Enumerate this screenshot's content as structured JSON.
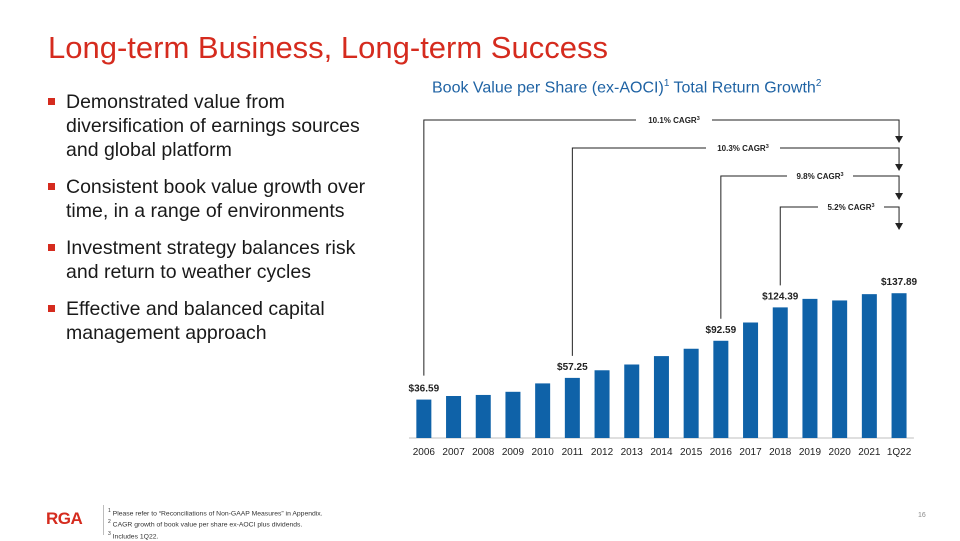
{
  "slide": {
    "title": "Long-term Business, Long-term Success",
    "page_number": "16",
    "logo_text": "RGA"
  },
  "bullets": [
    "Demonstrated value from diversification of earnings sources and global platform",
    "Consistent book value growth over time, in a range of environments",
    "Investment strategy balances risk and return to weather cycles",
    "Effective and balanced capital management approach"
  ],
  "chart_heading": {
    "text_a": "Book Value per Share (ex-AOCI)",
    "sup_a": "1",
    "text_b": " Total Return Growth",
    "sup_b": "2"
  },
  "footnotes": [
    {
      "sup": "1",
      "text": " Please refer to “Reconciliations of Non-GAAP Measures” in Appendix."
    },
    {
      "sup": "2",
      "text": " CAGR growth of book value per share ex-AOCI plus dividends."
    },
    {
      "sup": "3",
      "text": " Includes 1Q22."
    }
  ],
  "colors": {
    "accent": "#d52b1e",
    "bar": "#0f62a8",
    "heading": "#1f63a4"
  },
  "chart_data": {
    "type": "bar",
    "categories": [
      "2006",
      "2007",
      "2008",
      "2009",
      "2010",
      "2011",
      "2012",
      "2013",
      "2014",
      "2015",
      "2016",
      "2017",
      "2018",
      "2019",
      "2020",
      "2021",
      "1Q22"
    ],
    "values": [
      36.59,
      40.0,
      41.0,
      44.0,
      52.0,
      57.25,
      64.5,
      70.0,
      78.0,
      85.0,
      92.59,
      110.0,
      124.39,
      132.5,
      131.0,
      137.0,
      137.89
    ],
    "data_labels": [
      {
        "index": 0,
        "text": "$36.59"
      },
      {
        "index": 5,
        "text": "$57.25"
      },
      {
        "index": 10,
        "text": "$92.59"
      },
      {
        "index": 12,
        "text": "$124.39"
      },
      {
        "index": 16,
        "text": "$137.89"
      }
    ],
    "annotations": [
      {
        "from_index": 0,
        "label": "10.1% CAGR",
        "sup": "3"
      },
      {
        "from_index": 5,
        "label": "10.3% CAGR",
        "sup": "3"
      },
      {
        "from_index": 10,
        "label": "9.8% CAGR",
        "sup": "3"
      },
      {
        "from_index": 12,
        "label": "5.2% CAGR",
        "sup": "3"
      }
    ],
    "ylim": [
      0,
      160
    ],
    "grid": false
  }
}
